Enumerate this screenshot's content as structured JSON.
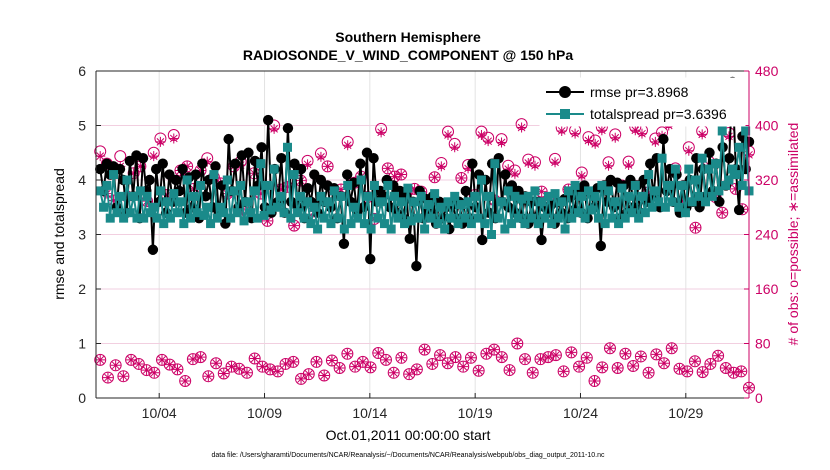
{
  "chart_data": {
    "type": "line",
    "title": "Southern Hemisphere",
    "subtitle": "RADIOSONDE_V_WIND_COMPONENT @ 150 hPa",
    "xlabel": "Oct.01,2011 00:00:00 start",
    "ylabel": "rmse and totalspread",
    "y2label": "# of obs: o=possible; ∗=assimilated",
    "footnote": "data file: /Users/gharamti/Documents/NCAR/Reanalysis/~/Documents/NCAR/Reanalysis/webpub/obs_diag_output_2011-10.nc",
    "xlim": [
      1,
      32
    ],
    "ylim": [
      0,
      6
    ],
    "y2lim": [
      0,
      480
    ],
    "x_ticks": [
      4,
      9,
      14,
      19,
      24,
      29
    ],
    "x_tick_labels": [
      "10/04",
      "10/09",
      "10/14",
      "10/19",
      "10/24",
      "10/29"
    ],
    "y_ticks": [
      0,
      1,
      2,
      3,
      4,
      5,
      6
    ],
    "y_tick_labels": [
      "0",
      "1",
      "2",
      "3",
      "4",
      "5",
      "6"
    ],
    "y2_ticks": [
      0,
      80,
      160,
      240,
      320,
      400,
      480
    ],
    "y2_tick_labels": [
      "0",
      "80",
      "160",
      "240",
      "320",
      "400",
      "480"
    ],
    "grid": true,
    "legend_position": "top-right",
    "colors": {
      "rmse": "#000000",
      "totalspread": "#1a8a8a",
      "obs": "#cc0066"
    },
    "series": [
      {
        "name": "rmse",
        "legend": "rmse pr=3.8968",
        "axis": "left",
        "values": [
          4.2,
          3.8,
          4.3,
          4.1,
          4.25,
          3.5,
          4.2,
          4.0,
          3.4,
          4.35,
          3.7,
          4.45,
          3.3,
          4.4,
          3.8,
          4.0,
          2.72,
          4.2,
          3.6,
          4.3,
          3.4,
          4.1,
          3.6,
          4.0,
          3.8,
          4.2,
          3.4,
          4.05,
          3.5,
          4.1,
          3.3,
          4.3,
          3.7,
          4.0,
          3.5,
          4.25,
          3.4,
          3.9,
          3.2,
          4.75,
          3.8,
          4.3,
          3.5,
          4.45,
          3.6,
          4.5,
          3.3,
          4.35,
          3.9,
          4.6,
          3.5,
          5.1,
          3.4,
          4.2,
          3.6,
          4.4,
          3.4,
          4.95,
          3.6,
          4.3,
          3.5,
          4.2,
          3.3,
          3.85,
          3.6,
          4.1,
          3.4,
          4.0,
          3.6,
          3.9,
          3.5,
          3.85,
          3.3,
          3.7,
          2.83,
          4.1,
          3.6,
          3.95,
          3.4,
          4.3,
          3.5,
          4.5,
          2.55,
          4.4,
          3.6,
          3.8,
          3.7,
          4.0,
          3.5,
          3.9,
          3.4,
          3.8,
          3.3,
          3.7,
          2.92,
          3.6,
          2.42,
          3.8,
          3.3,
          3.65,
          3.4,
          3.7,
          3.2,
          3.6,
          3.3,
          3.5,
          3.1,
          3.55,
          3.3,
          3.6,
          3.2,
          3.8,
          3.3,
          4.3,
          3.5,
          4.1,
          2.9,
          4.0,
          3.4,
          4.3,
          3.3,
          4.4,
          3.6,
          4.1,
          3.5,
          3.9,
          3.4,
          3.8,
          3.3,
          3.7,
          3.2,
          3.6,
          3.3,
          3.6,
          2.9,
          3.5,
          3.4,
          3.55,
          3.2,
          3.6,
          3.4,
          3.65,
          3.3,
          3.7,
          3.45,
          3.8,
          3.4,
          3.9,
          3.3,
          3.75,
          3.5,
          3.85,
          2.79,
          3.9,
          3.6,
          4.0,
          3.5,
          3.95,
          3.3,
          3.9,
          3.4,
          4.0,
          3.5,
          3.9,
          3.4,
          4.0,
          3.6,
          4.3,
          3.7,
          4.4,
          3.5,
          4.75,
          3.8,
          4.2,
          3.6,
          4.1,
          3.4,
          3.9,
          3.5,
          4.0,
          3.6,
          4.4,
          3.5,
          4.2,
          3.7,
          4.5,
          3.8,
          4.3,
          3.6,
          4.6,
          3.9,
          4.4,
          5.8,
          4.2,
          3.45,
          4.8,
          4.2,
          4.7
        ]
      },
      {
        "name": "totalspread",
        "legend": "totalspread pr=3.6396",
        "axis": "left",
        "values": [
          3.8,
          3.5,
          3.9,
          3.3,
          4.1,
          3.4,
          3.7,
          3.3,
          4.0,
          3.4,
          3.7,
          3.3,
          3.8,
          3.3,
          3.7,
          3.4,
          3.5,
          3.3,
          3.8,
          3.2,
          3.6,
          3.3,
          3.75,
          3.4,
          3.6,
          3.2,
          4.0,
          3.3,
          3.7,
          3.4,
          3.9,
          3.35,
          3.5,
          3.2,
          4.1,
          3.3,
          3.5,
          3.4,
          4.0,
          3.3,
          3.8,
          3.4,
          3.9,
          3.25,
          3.6,
          3.4,
          3.8,
          3.3,
          4.3,
          3.35,
          3.9,
          3.45,
          4.2,
          3.5,
          3.7,
          3.4,
          4.6,
          3.3,
          4.1,
          3.4,
          3.7,
          3.3,
          3.6,
          3.2,
          3.5,
          3.1,
          3.7,
          3.3,
          3.6,
          3.2,
          3.8,
          3.3,
          3.7,
          3.1,
          3.9,
          3.2,
          3.5,
          3.3,
          4.0,
          3.2,
          3.7,
          3.1,
          3.9,
          3.3,
          3.6,
          3.2,
          3.9,
          3.1,
          3.7,
          3.3,
          3.6,
          3.2,
          3.85,
          3.25,
          3.6,
          3.3,
          3.7,
          3.1,
          3.55,
          3.3,
          3.75,
          3.2,
          3.5,
          3.1,
          3.6,
          3.3,
          3.7,
          3.2,
          3.55,
          3.3,
          3.6,
          3.2,
          3.7,
          3.3,
          4.0,
          3.2,
          3.7,
          3.0,
          4.3,
          3.3,
          3.6,
          3.1,
          3.8,
          3.2,
          3.7,
          3.3,
          3.65,
          3.2,
          3.7,
          3.3,
          3.8,
          3.2,
          3.6,
          3.3,
          3.7,
          3.2,
          3.75,
          3.3,
          3.6,
          3.1,
          3.8,
          3.3,
          3.9,
          3.4,
          3.7,
          3.3,
          3.8,
          3.45,
          3.7,
          3.3,
          3.9,
          3.2,
          3.8,
          3.3,
          3.6,
          3.2,
          3.85,
          3.3,
          3.7,
          3.4,
          3.9,
          3.3,
          3.7,
          3.4,
          4.1,
          3.5,
          3.8,
          3.6,
          4.4,
          3.5,
          3.9,
          3.6,
          4.2,
          3.5,
          3.9,
          3.4,
          4.2,
          3.6,
          4.0,
          3.7,
          4.4,
          3.6,
          4.2,
          3.7,
          4.3,
          3.8,
          4.9,
          3.9,
          4.0,
          4.2,
          4.1,
          4.6,
          3.9,
          4.9,
          3.8
        ]
      },
      {
        "name": "possible",
        "axis": "right",
        "values": [
          362,
          344,
          290,
          355,
          296,
          330,
          340,
          289,
          360,
          381,
          298,
          386,
          334,
          340,
          307,
          334,
          352,
          324,
          315,
          300,
          340,
          347,
          272,
          330,
          300,
          260,
          400,
          306,
          310,
          253,
          319,
          348,
          274,
          359,
          340,
          298,
          306,
          376,
          316,
          325,
          295,
          263,
          395,
          337,
          325,
          328,
          304,
          307,
          303,
          266,
          324,
          345,
          391,
          373,
          323,
          342,
          298,
          391,
          382,
          290,
          380,
          341,
          334,
          402,
          350,
          346,
          303,
          290,
          351,
          397,
          306,
          393,
          331,
          383,
          378,
          398,
          346,
          387,
          312,
          347,
          398,
          393,
          302,
          381,
          390,
          405,
          337,
          289,
          368,
          250,
          392,
          347,
          295,
          272,
          389,
          307,
          277,
          362
        ]
      },
      {
        "name": "assimilated",
        "axis": "right",
        "values": [
          355,
          300,
          290,
          340,
          296,
          330,
          340,
          289,
          355,
          376,
          298,
          381,
          334,
          340,
          307,
          334,
          347,
          324,
          315,
          300,
          340,
          342,
          272,
          330,
          300,
          260,
          395,
          306,
          310,
          253,
          319,
          343,
          274,
          354,
          340,
          298,
          306,
          371,
          316,
          325,
          295,
          263,
          390,
          337,
          325,
          328,
          304,
          307,
          303,
          266,
          324,
          340,
          386,
          368,
          323,
          337,
          298,
          386,
          377,
          290,
          375,
          336,
          329,
          397,
          345,
          341,
          303,
          290,
          346,
          392,
          306,
          388,
          326,
          378,
          373,
          393,
          341,
          382,
          312,
          342,
          393,
          388,
          302,
          376,
          385,
          400,
          332,
          289,
          363,
          250,
          387,
          342,
          295,
          272,
          384,
          307,
          277,
          357
        ]
      },
      {
        "name": "possible_lower",
        "axis": "right",
        "values": [
          56,
          30,
          48,
          32,
          56,
          50,
          41,
          37,
          56,
          49,
          42,
          25,
          57,
          60,
          32,
          51,
          36,
          46,
          43,
          37,
          58,
          46,
          42,
          39,
          50,
          53,
          28,
          35,
          53,
          33,
          55,
          44,
          65,
          46,
          53,
          45,
          66,
          56,
          37,
          59,
          35,
          42,
          71,
          50,
          63,
          51,
          60,
          46,
          59,
          40,
          65,
          71,
          60,
          41,
          80,
          57,
          37,
          57,
          60,
          63,
          39,
          67,
          46,
          59,
          25,
          45,
          73,
          44,
          65,
          47,
          61,
          37,
          64,
          51,
          73,
          43,
          39,
          54,
          38,
          50,
          62,
          44,
          37,
          39,
          15
        ]
      },
      {
        "name": "assimilated_lower",
        "axis": "right",
        "values": [
          56,
          30,
          48,
          32,
          56,
          50,
          41,
          37,
          56,
          49,
          42,
          25,
          57,
          60,
          32,
          51,
          36,
          46,
          43,
          37,
          58,
          46,
          42,
          39,
          50,
          53,
          28,
          35,
          53,
          33,
          55,
          44,
          65,
          46,
          53,
          45,
          66,
          56,
          37,
          59,
          35,
          42,
          71,
          50,
          63,
          51,
          60,
          46,
          59,
          40,
          65,
          71,
          60,
          41,
          80,
          57,
          37,
          57,
          60,
          63,
          39,
          67,
          46,
          59,
          25,
          45,
          73,
          44,
          65,
          47,
          61,
          37,
          64,
          51,
          73,
          43,
          39,
          54,
          38,
          50,
          62,
          44,
          37,
          39,
          15
        ]
      }
    ]
  }
}
